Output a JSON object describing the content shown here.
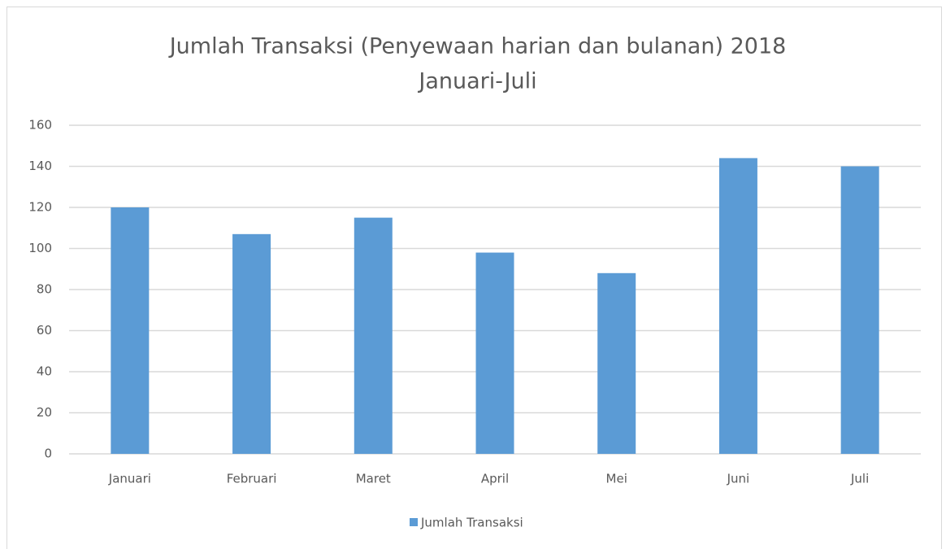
{
  "chart_data": {
    "type": "bar",
    "title": "Jumlah Transaksi (Penyewaan harian dan bulanan) 2018",
    "subtitle": "Januari-Juli",
    "categories": [
      "Januari",
      "Februari",
      "Maret",
      "April",
      "Mei",
      "Juni",
      "Juli"
    ],
    "series": [
      {
        "name": "Jumlah Transaksi",
        "color": "#5b9bd5",
        "values": [
          120,
          107,
          115,
          98,
          88,
          144,
          140
        ]
      }
    ],
    "ylim": [
      0,
      160
    ],
    "yticks": [
      0,
      20,
      40,
      60,
      80,
      100,
      120,
      140,
      160
    ],
    "grid": true,
    "legend": "bottom"
  }
}
